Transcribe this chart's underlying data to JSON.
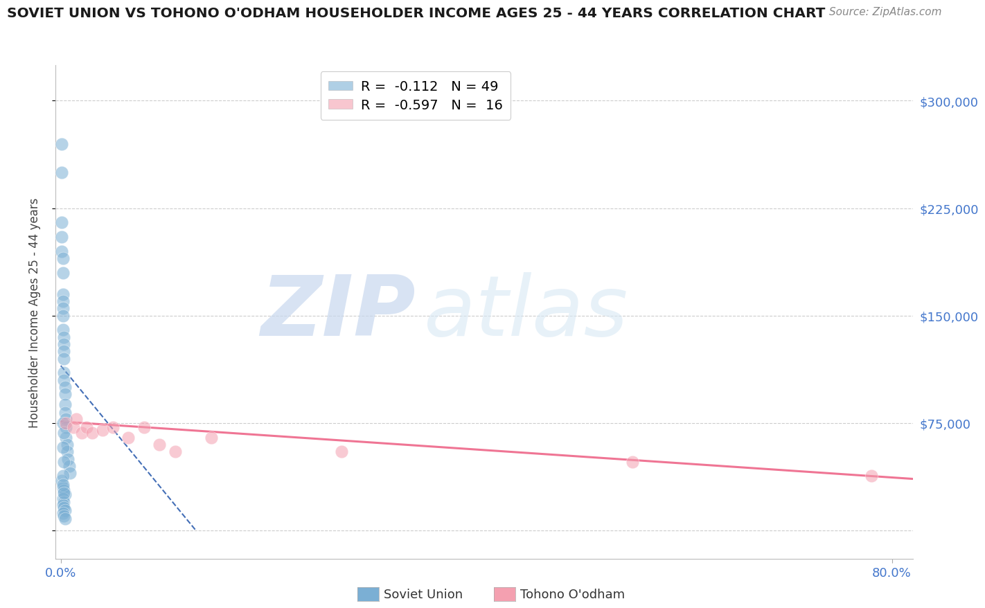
{
  "title": "SOVIET UNION VS TOHONO O'ODHAM HOUSEHOLDER INCOME AGES 25 - 44 YEARS CORRELATION CHART",
  "source": "Source: ZipAtlas.com",
  "ylabel": "Householder Income Ages 25 - 44 years",
  "xlim": [
    -0.005,
    0.82
  ],
  "ylim": [
    -20000,
    325000
  ],
  "legend_entry1": "R =  -0.112   N = 49",
  "legend_entry2": "R =  -0.597   N =  16",
  "legend_label1": "Soviet Union",
  "legend_label2": "Tohono O'odham",
  "soviet_color": "#7BAFD4",
  "tohono_color": "#F4A0B0",
  "soviet_trend_color": "#2255AA",
  "tohono_trend_color": "#EE6688",
  "background_color": "#FFFFFF",
  "grid_color": "#CCCCCC",
  "ytick_vals": [
    0,
    75000,
    150000,
    225000,
    300000
  ],
  "ytick_labels": [
    "",
    "$75,000",
    "$150,000",
    "$225,000",
    "$300,000"
  ],
  "xtick_vals": [
    0.0,
    0.8
  ],
  "xtick_labels": [
    "0.0%",
    "80.0%"
  ],
  "soviet_x": [
    0.001,
    0.001,
    0.001,
    0.001,
    0.001,
    0.002,
    0.002,
    0.002,
    0.002,
    0.002,
    0.002,
    0.002,
    0.003,
    0.003,
    0.003,
    0.003,
    0.003,
    0.003,
    0.004,
    0.004,
    0.004,
    0.004,
    0.005,
    0.005,
    0.005,
    0.006,
    0.006,
    0.007,
    0.008,
    0.009,
    0.001,
    0.002,
    0.003,
    0.004,
    0.002,
    0.003,
    0.002,
    0.003,
    0.004,
    0.002,
    0.003,
    0.004,
    0.002,
    0.003,
    0.002,
    0.003,
    0.002,
    0.002,
    0.003
  ],
  "soviet_y": [
    270000,
    250000,
    215000,
    205000,
    195000,
    190000,
    180000,
    165000,
    160000,
    155000,
    150000,
    140000,
    135000,
    130000,
    125000,
    120000,
    110000,
    105000,
    100000,
    95000,
    88000,
    82000,
    78000,
    72000,
    65000,
    60000,
    55000,
    50000,
    45000,
    40000,
    35000,
    30000,
    28000,
    25000,
    22000,
    20000,
    18000,
    16000,
    14000,
    12000,
    10000,
    8000,
    75000,
    68000,
    58000,
    48000,
    38000,
    32000,
    26000
  ],
  "tohono_x": [
    0.005,
    0.012,
    0.015,
    0.02,
    0.025,
    0.03,
    0.04,
    0.05,
    0.065,
    0.08,
    0.095,
    0.11,
    0.145,
    0.27,
    0.55,
    0.78
  ],
  "tohono_y": [
    75000,
    72000,
    78000,
    68000,
    72000,
    68000,
    70000,
    72000,
    65000,
    72000,
    60000,
    55000,
    65000,
    55000,
    48000,
    38000
  ],
  "su_trend_x0": 0.0,
  "su_trend_x1": 0.13,
  "su_trend_y0": 115000,
  "su_trend_y1": 0,
  "to_trend_x0": 0.0,
  "to_trend_x1": 0.82,
  "to_trend_y0": 76000,
  "to_trend_y1": 36000
}
